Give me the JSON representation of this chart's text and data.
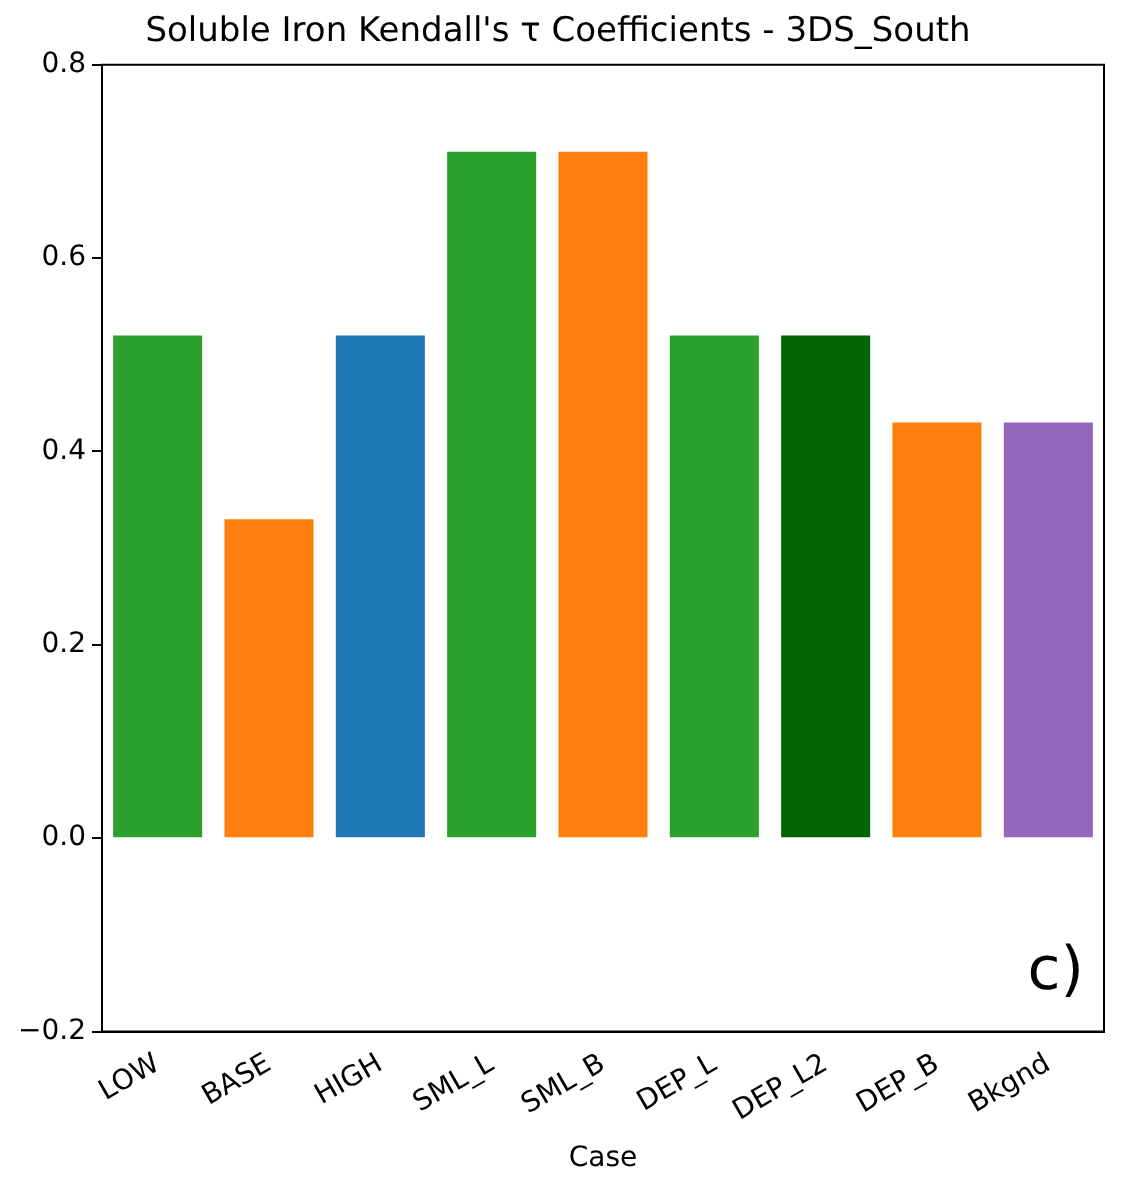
{
  "chart_data": {
    "type": "bar",
    "title": "Soluble Iron Kendall's τ Coefficients - 3DS_South",
    "xlabel": "Case",
    "categories": [
      "LOW",
      "BASE",
      "HIGH",
      "SML_L",
      "SML_B",
      "DEP_L",
      "DEP_L2",
      "DEP_B",
      "Bkgnd"
    ],
    "values": [
      0.52,
      0.33,
      0.52,
      0.71,
      0.71,
      0.52,
      0.52,
      0.43,
      0.43
    ],
    "colors": [
      "#2ca02c",
      "#ff7f0e",
      "#1f77b4",
      "#2ca02c",
      "#ff7f0e",
      "#2ca02c",
      "#006400",
      "#ff7f0e",
      "#9467bd"
    ],
    "ylim": [
      -0.2,
      0.8
    ],
    "yticks": [
      {
        "value": -0.2,
        "label": "−0.2"
      },
      {
        "value": 0,
        "label": "0.0"
      },
      {
        "value": 0.2,
        "label": "0.2"
      },
      {
        "value": 0.4,
        "label": "0.4"
      },
      {
        "value": 0.6,
        "label": "0.6"
      },
      {
        "value": 0.8,
        "label": "0.8"
      }
    ],
    "grid": false,
    "legend": false,
    "annotations": [
      "c)"
    ]
  }
}
